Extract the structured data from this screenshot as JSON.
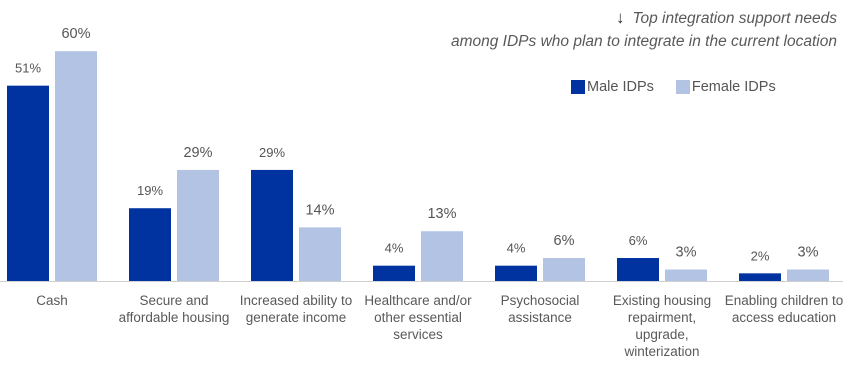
{
  "title": {
    "arrow": "↓",
    "line1": "Top integration support needs",
    "line2": "among IDPs who plan to integrate in the current location"
  },
  "legend": [
    {
      "name": "Male IDPs",
      "color": "#0033a0"
    },
    {
      "name": "Female IDPs",
      "color": "#b3c3e4"
    }
  ],
  "chart_data": {
    "type": "bar",
    "categories": [
      "Cash",
      "Secure and affordable housing",
      "Increased ability to generate income",
      "Healthcare and/or other essential services",
      "Psychosocial assistance",
      "Existing housing repairment, upgrade, winterization",
      "Enabling children to access education"
    ],
    "series": [
      {
        "name": "Male IDPs",
        "color": "#0033a0",
        "values": [
          51,
          19,
          29,
          4,
          4,
          6,
          2
        ]
      },
      {
        "name": "Female IDPs",
        "color": "#b3c3e4",
        "values": [
          60,
          29,
          14,
          13,
          6,
          3,
          3
        ]
      }
    ],
    "value_suffix": "%",
    "ylim": [
      0,
      60
    ],
    "grid": false,
    "legend_position": "top-right"
  }
}
